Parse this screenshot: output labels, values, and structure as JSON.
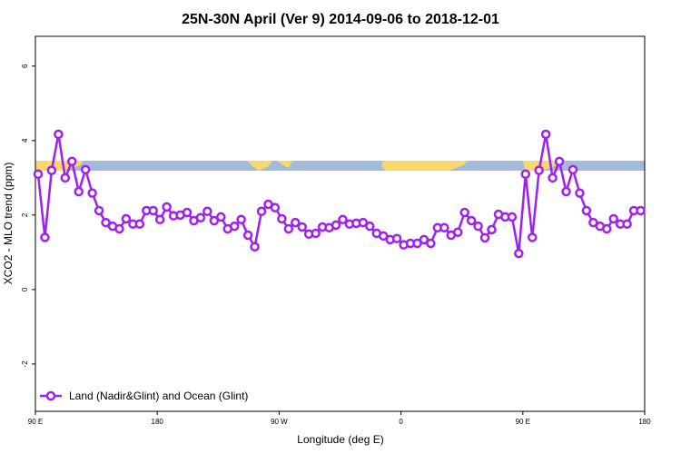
{
  "chart_data": {
    "type": "line",
    "title": "25N-30N April (Ver 9)   2014-09-06 to 2018-12-01",
    "x_label": "Longitude (deg E)",
    "y_label": "XCO2 - MLO trend (ppm)",
    "x": [
      92,
      97,
      102,
      107,
      112,
      117,
      122,
      127,
      132,
      137,
      142,
      147,
      152,
      157,
      162,
      167,
      172,
      177,
      182,
      187,
      192,
      197,
      202,
      207,
      212,
      217,
      222,
      227,
      232,
      237,
      242,
      247,
      252,
      257,
      262,
      267,
      272,
      277,
      282,
      287,
      292,
      297,
      302,
      307,
      312,
      317,
      322,
      327,
      332,
      337,
      342,
      347,
      352,
      357,
      362,
      367,
      372,
      377,
      382,
      387,
      392,
      397,
      402,
      407,
      412,
      417,
      422,
      427,
      432,
      437,
      442,
      447,
      452,
      457,
      462,
      467,
      472,
      477,
      482,
      487,
      492,
      497,
      502,
      507,
      512,
      517,
      522,
      527,
      532,
      537
    ],
    "series": [
      {
        "name": "Land (Nadir&Glint) and Ocean (Glint)",
        "color": "#a020f0",
        "values": [
          3.1,
          1.4,
          3.2,
          4.17,
          3.0,
          3.44,
          2.63,
          3.22,
          2.59,
          2.12,
          1.8,
          1.7,
          1.63,
          1.9,
          1.76,
          1.76,
          2.12,
          2.12,
          1.88,
          2.22,
          1.98,
          2.0,
          2.07,
          1.85,
          1.93,
          2.1,
          1.85,
          1.95,
          1.63,
          1.7,
          1.88,
          1.46,
          1.15,
          2.1,
          2.29,
          2.2,
          1.9,
          1.63,
          1.8,
          1.68,
          1.49,
          1.51,
          1.68,
          1.66,
          1.73,
          1.88,
          1.76,
          1.78,
          1.8,
          1.7,
          1.51,
          1.44,
          1.34,
          1.37,
          1.2,
          1.24,
          1.24,
          1.34,
          1.24,
          1.66,
          1.66,
          1.46,
          1.54,
          2.07,
          1.85,
          1.7,
          1.39,
          1.61,
          2.02,
          1.95,
          1.95,
          0.97,
          3.1,
          1.4,
          3.2,
          4.17,
          3.0,
          3.44,
          2.63,
          3.22,
          2.59,
          2.12,
          1.8,
          1.7,
          1.63,
          1.9,
          1.76,
          1.76,
          2.12,
          2.12
        ]
      }
    ],
    "xlim": [
      90,
      540
    ],
    "xticks": [
      {
        "value": 90,
        "label": "90 E"
      },
      {
        "value": 180,
        "label": "180"
      },
      {
        "value": 270,
        "label": "90 W"
      },
      {
        "value": 360,
        "label": "0"
      },
      {
        "value": 450,
        "label": "90 E"
      },
      {
        "value": 540,
        "label": "180"
      }
    ],
    "ylim": [
      -3.27,
      6.8
    ],
    "yticks": [
      -2,
      0,
      2,
      4,
      6
    ],
    "legend": "bottom-left"
  }
}
